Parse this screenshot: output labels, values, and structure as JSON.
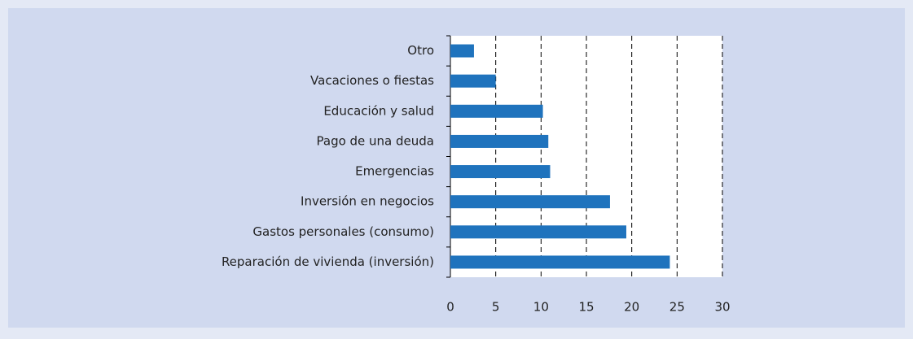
{
  "chart_data": {
    "type": "bar",
    "orientation": "horizontal",
    "categories": [
      "Otro",
      "Vacaciones o fiestas",
      "Educación y salud",
      "Pago de una deuda",
      "Emergencias",
      "Inversión en negocios",
      "Gastos personales (consumo)",
      "Reparación de vivienda (inversión)"
    ],
    "values": [
      2.6,
      5.0,
      10.2,
      10.8,
      11.0,
      17.6,
      19.4,
      24.2
    ],
    "color": "#1f73bd",
    "xlim": [
      0,
      30
    ],
    "xticks": [
      0,
      5,
      10,
      15,
      20,
      25,
      30
    ],
    "grid": true
  }
}
